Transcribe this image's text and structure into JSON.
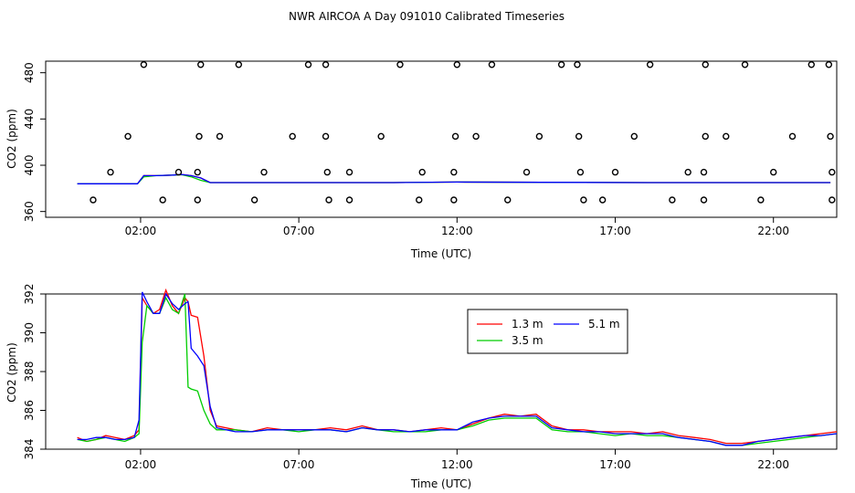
{
  "title": "NWR AIRCOA A  Day 091010  Calibrated Timeseries",
  "colors": {
    "h13": "#ff0000",
    "h35": "#00cd00",
    "h51": "#0000ff",
    "axis": "#000000"
  },
  "chart_data": [
    {
      "type": "scatter",
      "xlabel": "Time (UTC)",
      "ylabel": "CO2 (ppm)",
      "xlim": [
        -1.0,
        24.0
      ],
      "ylim": [
        355,
        490
      ],
      "x_ticks": [
        2,
        7,
        12,
        17,
        22
      ],
      "x_tick_labels": [
        "02:00",
        "07:00",
        "12:00",
        "17:00",
        "22:00"
      ],
      "y_ticks": [
        360,
        400,
        440,
        480
      ],
      "y_tick_labels": [
        "360",
        "400",
        "440",
        "480"
      ],
      "grid": false,
      "series_lines": [
        {
          "key": "h13",
          "x": [
            0,
            1,
            1.9,
            2.1,
            2.5,
            3,
            3.3,
            3.6,
            3.9,
            4.2,
            5,
            10,
            12,
            18,
            23.8
          ],
          "y": [
            384,
            384,
            384,
            391,
            391,
            391.5,
            392,
            391,
            389,
            385,
            385,
            385,
            385.5,
            385,
            385
          ]
        },
        {
          "key": "h35",
          "x": [
            0,
            1,
            1.9,
            2.1,
            2.5,
            3,
            3.3,
            3.6,
            3.9,
            4.2,
            5,
            10,
            12,
            18,
            23.8
          ],
          "y": [
            384,
            384,
            384,
            390,
            391,
            391.5,
            391.8,
            390,
            387,
            385,
            385,
            385,
            385.5,
            385,
            385
          ]
        },
        {
          "key": "h51",
          "x": [
            0,
            1,
            1.9,
            2.1,
            2.5,
            3,
            3.3,
            3.6,
            3.9,
            4.2,
            5,
            10,
            12,
            18,
            23.8
          ],
          "y": [
            384,
            384,
            384,
            391,
            391,
            391.5,
            392,
            391,
            389,
            385,
            385,
            385,
            385.5,
            385,
            385
          ]
        }
      ],
      "markers": {
        "y487": [
          2.1,
          3.9,
          5.1,
          7.3,
          7.85,
          10.2,
          12.0,
          13.1,
          15.3,
          15.8,
          18.1,
          19.85,
          21.1,
          23.2,
          23.75
        ],
        "y425": [
          1.6,
          3.85,
          4.5,
          6.8,
          7.85,
          9.6,
          11.95,
          12.6,
          14.6,
          15.85,
          17.6,
          19.85,
          20.5,
          22.6,
          23.8
        ],
        "y394": [
          1.05,
          3.2,
          3.8,
          5.9,
          7.9,
          8.6,
          10.9,
          11.9,
          14.2,
          15.9,
          17.0,
          19.3,
          19.8,
          22.0,
          23.85
        ],
        "y370": [
          0.5,
          2.7,
          3.8,
          5.6,
          7.95,
          8.6,
          10.8,
          11.9,
          13.6,
          16.0,
          16.6,
          18.8,
          19.8,
          21.6,
          23.85
        ]
      }
    },
    {
      "type": "line",
      "xlabel": "Time (UTC)",
      "ylabel": "CO2 (ppm)",
      "xlim": [
        -1.0,
        24.0
      ],
      "ylim": [
        384,
        392
      ],
      "x_ticks": [
        2,
        7,
        12,
        17,
        22
      ],
      "x_tick_labels": [
        "02:00",
        "07:00",
        "12:00",
        "17:00",
        "22:00"
      ],
      "y_ticks": [
        384,
        386,
        388,
        390,
        392
      ],
      "y_tick_labels": [
        "384",
        "386",
        "388",
        "390",
        "392"
      ],
      "grid": false,
      "legend": {
        "placement": "top-center",
        "entries": [
          {
            "key": "h13",
            "label": "1.3 m"
          },
          {
            "key": "h51",
            "label": "5.1 m"
          },
          {
            "key": "h35",
            "label": "3.5 m"
          }
        ]
      },
      "series": [
        {
          "name": "1.3 m",
          "key": "h13",
          "x": [
            0,
            0.3,
            0.6,
            0.9,
            1.2,
            1.5,
            1.8,
            1.95,
            2.05,
            2.2,
            2.4,
            2.6,
            2.8,
            3.0,
            3.2,
            3.4,
            3.5,
            3.6,
            3.8,
            4.0,
            4.2,
            4.4,
            5,
            5.5,
            6,
            6.5,
            7,
            7.5,
            8,
            8.5,
            9,
            9.5,
            10,
            10.5,
            11,
            11.5,
            12,
            12.5,
            13,
            13.5,
            14,
            14.5,
            15,
            15.5,
            16,
            16.5,
            17,
            17.5,
            18,
            18.5,
            19,
            19.5,
            20,
            20.5,
            21,
            21.5,
            22,
            22.5,
            23,
            23.5,
            24
          ],
          "y": [
            384.6,
            384.4,
            384.5,
            384.7,
            384.6,
            384.5,
            384.7,
            385.0,
            391.8,
            391.4,
            391.0,
            391.2,
            392.2,
            391.4,
            391.0,
            391.8,
            391.6,
            390.9,
            390.8,
            388.8,
            386.0,
            385.2,
            385.0,
            384.9,
            385.1,
            385.0,
            385.0,
            385.0,
            385.1,
            385.0,
            385.2,
            385.0,
            385.0,
            384.9,
            385.0,
            385.1,
            385.0,
            385.3,
            385.6,
            385.8,
            385.7,
            385.8,
            385.2,
            385.0,
            385.0,
            384.9,
            384.9,
            384.9,
            384.8,
            384.9,
            384.7,
            384.6,
            384.5,
            384.3,
            384.3,
            384.4,
            384.5,
            384.6,
            384.7,
            384.8,
            384.9
          ]
        },
        {
          "name": "3.5 m",
          "key": "h35",
          "x": [
            0,
            0.3,
            0.6,
            0.9,
            1.2,
            1.5,
            1.8,
            1.95,
            2.05,
            2.2,
            2.4,
            2.6,
            2.8,
            3.0,
            3.2,
            3.4,
            3.5,
            3.6,
            3.8,
            4.0,
            4.2,
            4.4,
            5,
            5.5,
            6,
            6.5,
            7,
            7.5,
            8,
            8.5,
            9,
            9.5,
            10,
            10.5,
            11,
            11.5,
            12,
            12.5,
            13,
            13.5,
            14,
            14.5,
            15,
            15.5,
            16,
            16.5,
            17,
            17.5,
            18,
            18.5,
            19,
            19.5,
            20,
            20.5,
            21,
            21.5,
            22,
            22.5,
            23,
            23.5,
            24
          ],
          "y": [
            384.5,
            384.4,
            384.5,
            384.6,
            384.5,
            384.4,
            384.6,
            384.8,
            389.5,
            391.4,
            391.0,
            391.0,
            391.8,
            391.2,
            391.0,
            392.0,
            387.2,
            387.1,
            387.0,
            386.0,
            385.3,
            385.0,
            385.0,
            384.9,
            385.0,
            385.0,
            384.9,
            385.0,
            385.0,
            384.9,
            385.1,
            385.0,
            384.9,
            384.9,
            384.9,
            385.0,
            385.0,
            385.2,
            385.5,
            385.6,
            385.6,
            385.6,
            385.0,
            384.9,
            384.9,
            384.8,
            384.7,
            384.8,
            384.7,
            384.7,
            384.6,
            384.5,
            384.4,
            384.2,
            384.2,
            384.3,
            384.4,
            384.5,
            384.6,
            384.7,
            384.8
          ]
        },
        {
          "name": "5.1 m",
          "key": "h51",
          "x": [
            0,
            0.3,
            0.6,
            0.9,
            1.2,
            1.5,
            1.8,
            1.95,
            2.05,
            2.2,
            2.4,
            2.6,
            2.8,
            3.0,
            3.2,
            3.4,
            3.5,
            3.6,
            3.8,
            4.0,
            4.2,
            4.4,
            5,
            5.5,
            6,
            6.5,
            7,
            7.5,
            8,
            8.5,
            9,
            9.5,
            10,
            10.5,
            11,
            11.5,
            12,
            12.5,
            13,
            13.5,
            14,
            14.5,
            15,
            15.5,
            16,
            16.5,
            17,
            17.5,
            18,
            18.5,
            19,
            19.5,
            20,
            20.5,
            21,
            21.5,
            22,
            22.5,
            23,
            23.5,
            24
          ],
          "y": [
            384.5,
            384.5,
            384.6,
            384.6,
            384.5,
            384.5,
            384.6,
            385.5,
            392.1,
            391.6,
            391.0,
            391.0,
            392.0,
            391.5,
            391.2,
            391.5,
            391.6,
            389.2,
            388.8,
            388.3,
            386.2,
            385.1,
            384.9,
            384.9,
            385.0,
            385.0,
            385.0,
            385.0,
            385.0,
            384.9,
            385.1,
            385.0,
            385.0,
            384.9,
            385.0,
            385.0,
            385.0,
            385.4,
            385.6,
            385.7,
            385.7,
            385.7,
            385.1,
            385.0,
            384.9,
            384.9,
            384.8,
            384.8,
            384.8,
            384.8,
            384.6,
            384.5,
            384.4,
            384.2,
            384.2,
            384.4,
            384.5,
            384.6,
            384.7,
            384.7,
            384.8
          ]
        }
      ]
    }
  ]
}
